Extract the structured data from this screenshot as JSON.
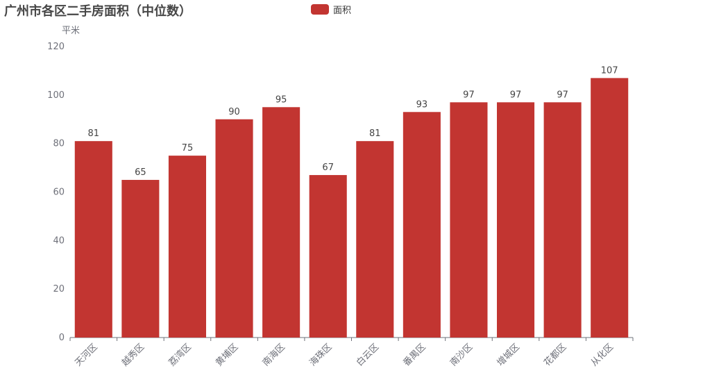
{
  "chart_data": {
    "type": "bar",
    "title": "广州市各区二手房面积（中位数）",
    "ylabel": "平米",
    "xlabel": "",
    "legend": [
      "面积"
    ],
    "legend_position": "top-center",
    "ylim": [
      0,
      120
    ],
    "yticks": [
      0,
      20,
      40,
      60,
      80,
      100,
      120
    ],
    "grid": false,
    "categories": [
      "天河区",
      "越秀区",
      "荔湾区",
      "黄埔区",
      "南海区",
      "海珠区",
      "白云区",
      "番禺区",
      "南沙区",
      "增城区",
      "花都区",
      "从化区"
    ],
    "series": [
      {
        "name": "面积",
        "color": "#c23531",
        "values": [
          81,
          65,
          75,
          90,
          95,
          67,
          81,
          93,
          97,
          97,
          97,
          107
        ]
      }
    ]
  }
}
